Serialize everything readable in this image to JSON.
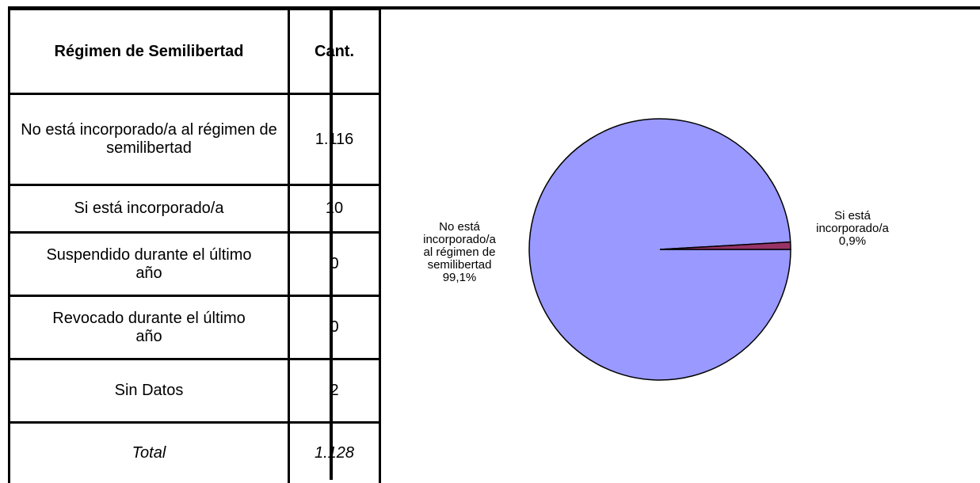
{
  "table": {
    "header": [
      "Régimen de Semilibertad",
      "Cant."
    ],
    "rows": [
      [
        "No está incorporado/a al régimen de semilibertad",
        "1.116"
      ],
      [
        "Si está incorporado/a",
        "10"
      ],
      [
        "Suspendido durante el último año",
        "0"
      ],
      [
        "Revocado durante el último año",
        "0"
      ],
      [
        "Sin Datos",
        "2"
      ]
    ],
    "total": [
      "Total",
      "1.128"
    ]
  },
  "chart_data": {
    "type": "pie",
    "categories": [
      "No está incorporado/a al régimen de semilibertad",
      "Si está incorporado/a"
    ],
    "values": [
      99.1,
      0.9
    ],
    "value_labels": [
      "99,1%",
      "0,9%"
    ],
    "colors": [
      "#9999ff",
      "#993366"
    ]
  }
}
